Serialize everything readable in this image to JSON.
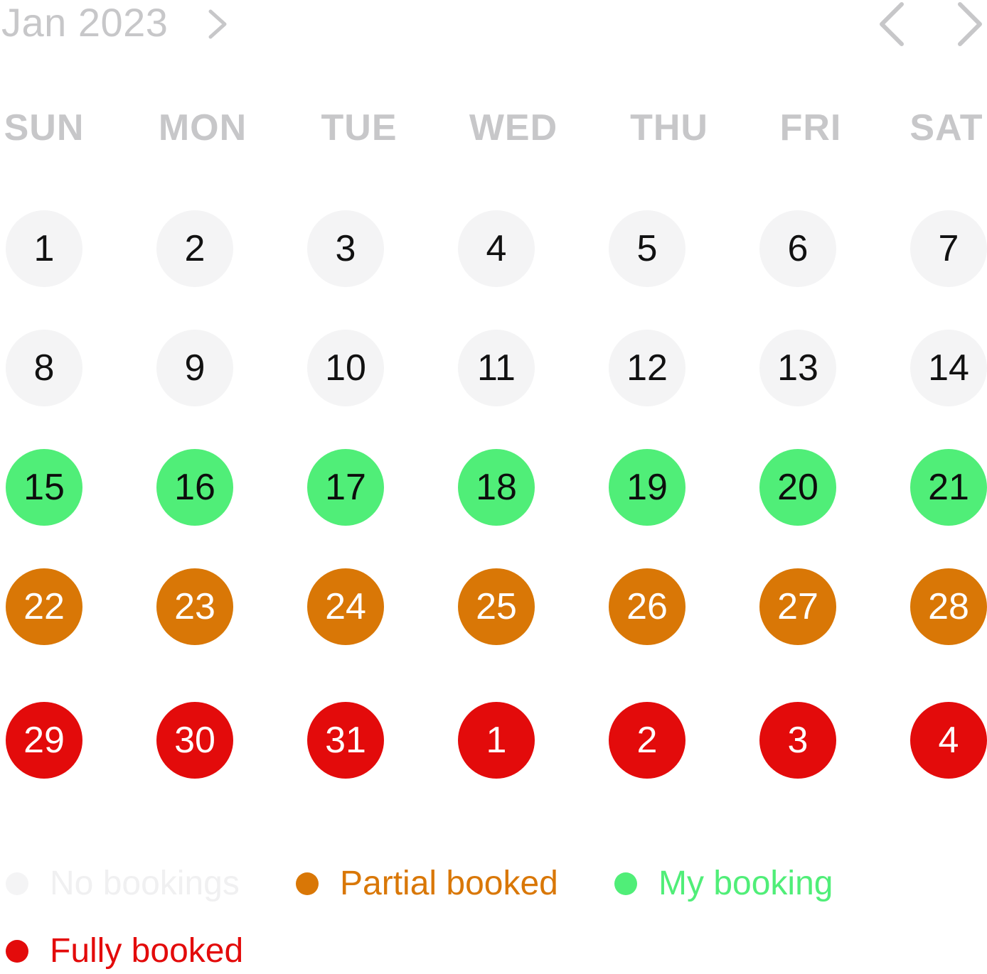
{
  "header": {
    "month_label": "Jan 2023"
  },
  "weekdays": [
    "SUN",
    "MON",
    "TUE",
    "WED",
    "THU",
    "FRI",
    "SAT"
  ],
  "weeks": [
    [
      {
        "label": "1",
        "status": "none"
      },
      {
        "label": "2",
        "status": "none"
      },
      {
        "label": "3",
        "status": "none"
      },
      {
        "label": "4",
        "status": "none"
      },
      {
        "label": "5",
        "status": "none"
      },
      {
        "label": "6",
        "status": "none"
      },
      {
        "label": "7",
        "status": "none"
      }
    ],
    [
      {
        "label": "8",
        "status": "none"
      },
      {
        "label": "9",
        "status": "none"
      },
      {
        "label": "10",
        "status": "none"
      },
      {
        "label": "11",
        "status": "none"
      },
      {
        "label": "12",
        "status": "none"
      },
      {
        "label": "13",
        "status": "none"
      },
      {
        "label": "14",
        "status": "none"
      }
    ],
    [
      {
        "label": "15",
        "status": "mine"
      },
      {
        "label": "16",
        "status": "mine"
      },
      {
        "label": "17",
        "status": "mine"
      },
      {
        "label": "18",
        "status": "mine"
      },
      {
        "label": "19",
        "status": "mine"
      },
      {
        "label": "20",
        "status": "mine"
      },
      {
        "label": "21",
        "status": "mine"
      }
    ],
    [
      {
        "label": "22",
        "status": "partial"
      },
      {
        "label": "23",
        "status": "partial"
      },
      {
        "label": "24",
        "status": "partial"
      },
      {
        "label": "25",
        "status": "partial"
      },
      {
        "label": "26",
        "status": "partial"
      },
      {
        "label": "27",
        "status": "partial"
      },
      {
        "label": "28",
        "status": "partial"
      }
    ],
    [
      {
        "label": "29",
        "status": "full"
      },
      {
        "label": "30",
        "status": "full"
      },
      {
        "label": "31",
        "status": "full"
      },
      {
        "label": "1",
        "status": "full"
      },
      {
        "label": "2",
        "status": "full"
      },
      {
        "label": "3",
        "status": "full"
      },
      {
        "label": "4",
        "status": "full"
      }
    ]
  ],
  "legend": [
    {
      "label": "No bookings",
      "status": "none",
      "dot_color": "#f4f4f5",
      "text_color": "#f0f0f1"
    },
    {
      "label": "Partial booked",
      "status": "partial",
      "dot_color": "#d97706",
      "text_color": "#d97706"
    },
    {
      "label": "My booking",
      "status": "mine",
      "dot_color": "#50ee78",
      "text_color": "#50ee78"
    },
    {
      "label": "Fully booked",
      "status": "full",
      "dot_color": "#e30b0b",
      "text_color": "#e30b0b"
    }
  ],
  "colors": {
    "no_bookings": "#f4f4f5",
    "my_booking": "#50ee78",
    "partial_booked": "#d97706",
    "fully_booked": "#e30b0b",
    "muted_text": "#c7c7c9"
  },
  "icons": {
    "month_selector": "chevron-right-icon",
    "prev": "chevron-left-icon",
    "next": "chevron-right-icon"
  }
}
